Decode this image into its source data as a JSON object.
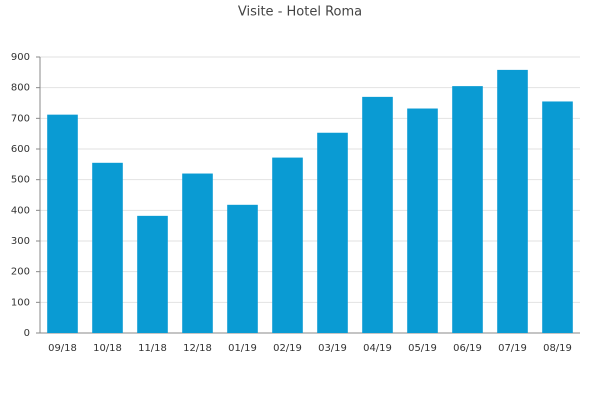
{
  "chart_data": {
    "type": "bar",
    "title": "Visite - Hotel Roma",
    "categories": [
      "09/18",
      "10/18",
      "11/18",
      "12/18",
      "01/19",
      "02/19",
      "03/19",
      "04/19",
      "05/19",
      "06/19",
      "07/19",
      "08/19"
    ],
    "values": [
      712,
      555,
      382,
      520,
      418,
      572,
      653,
      770,
      732,
      805,
      858,
      755
    ],
    "color": "#0a9bd3",
    "ylim": [
      0,
      900
    ],
    "yticks": [
      0,
      100,
      200,
      300,
      400,
      500,
      600,
      700,
      800,
      900
    ],
    "grid": true
  }
}
